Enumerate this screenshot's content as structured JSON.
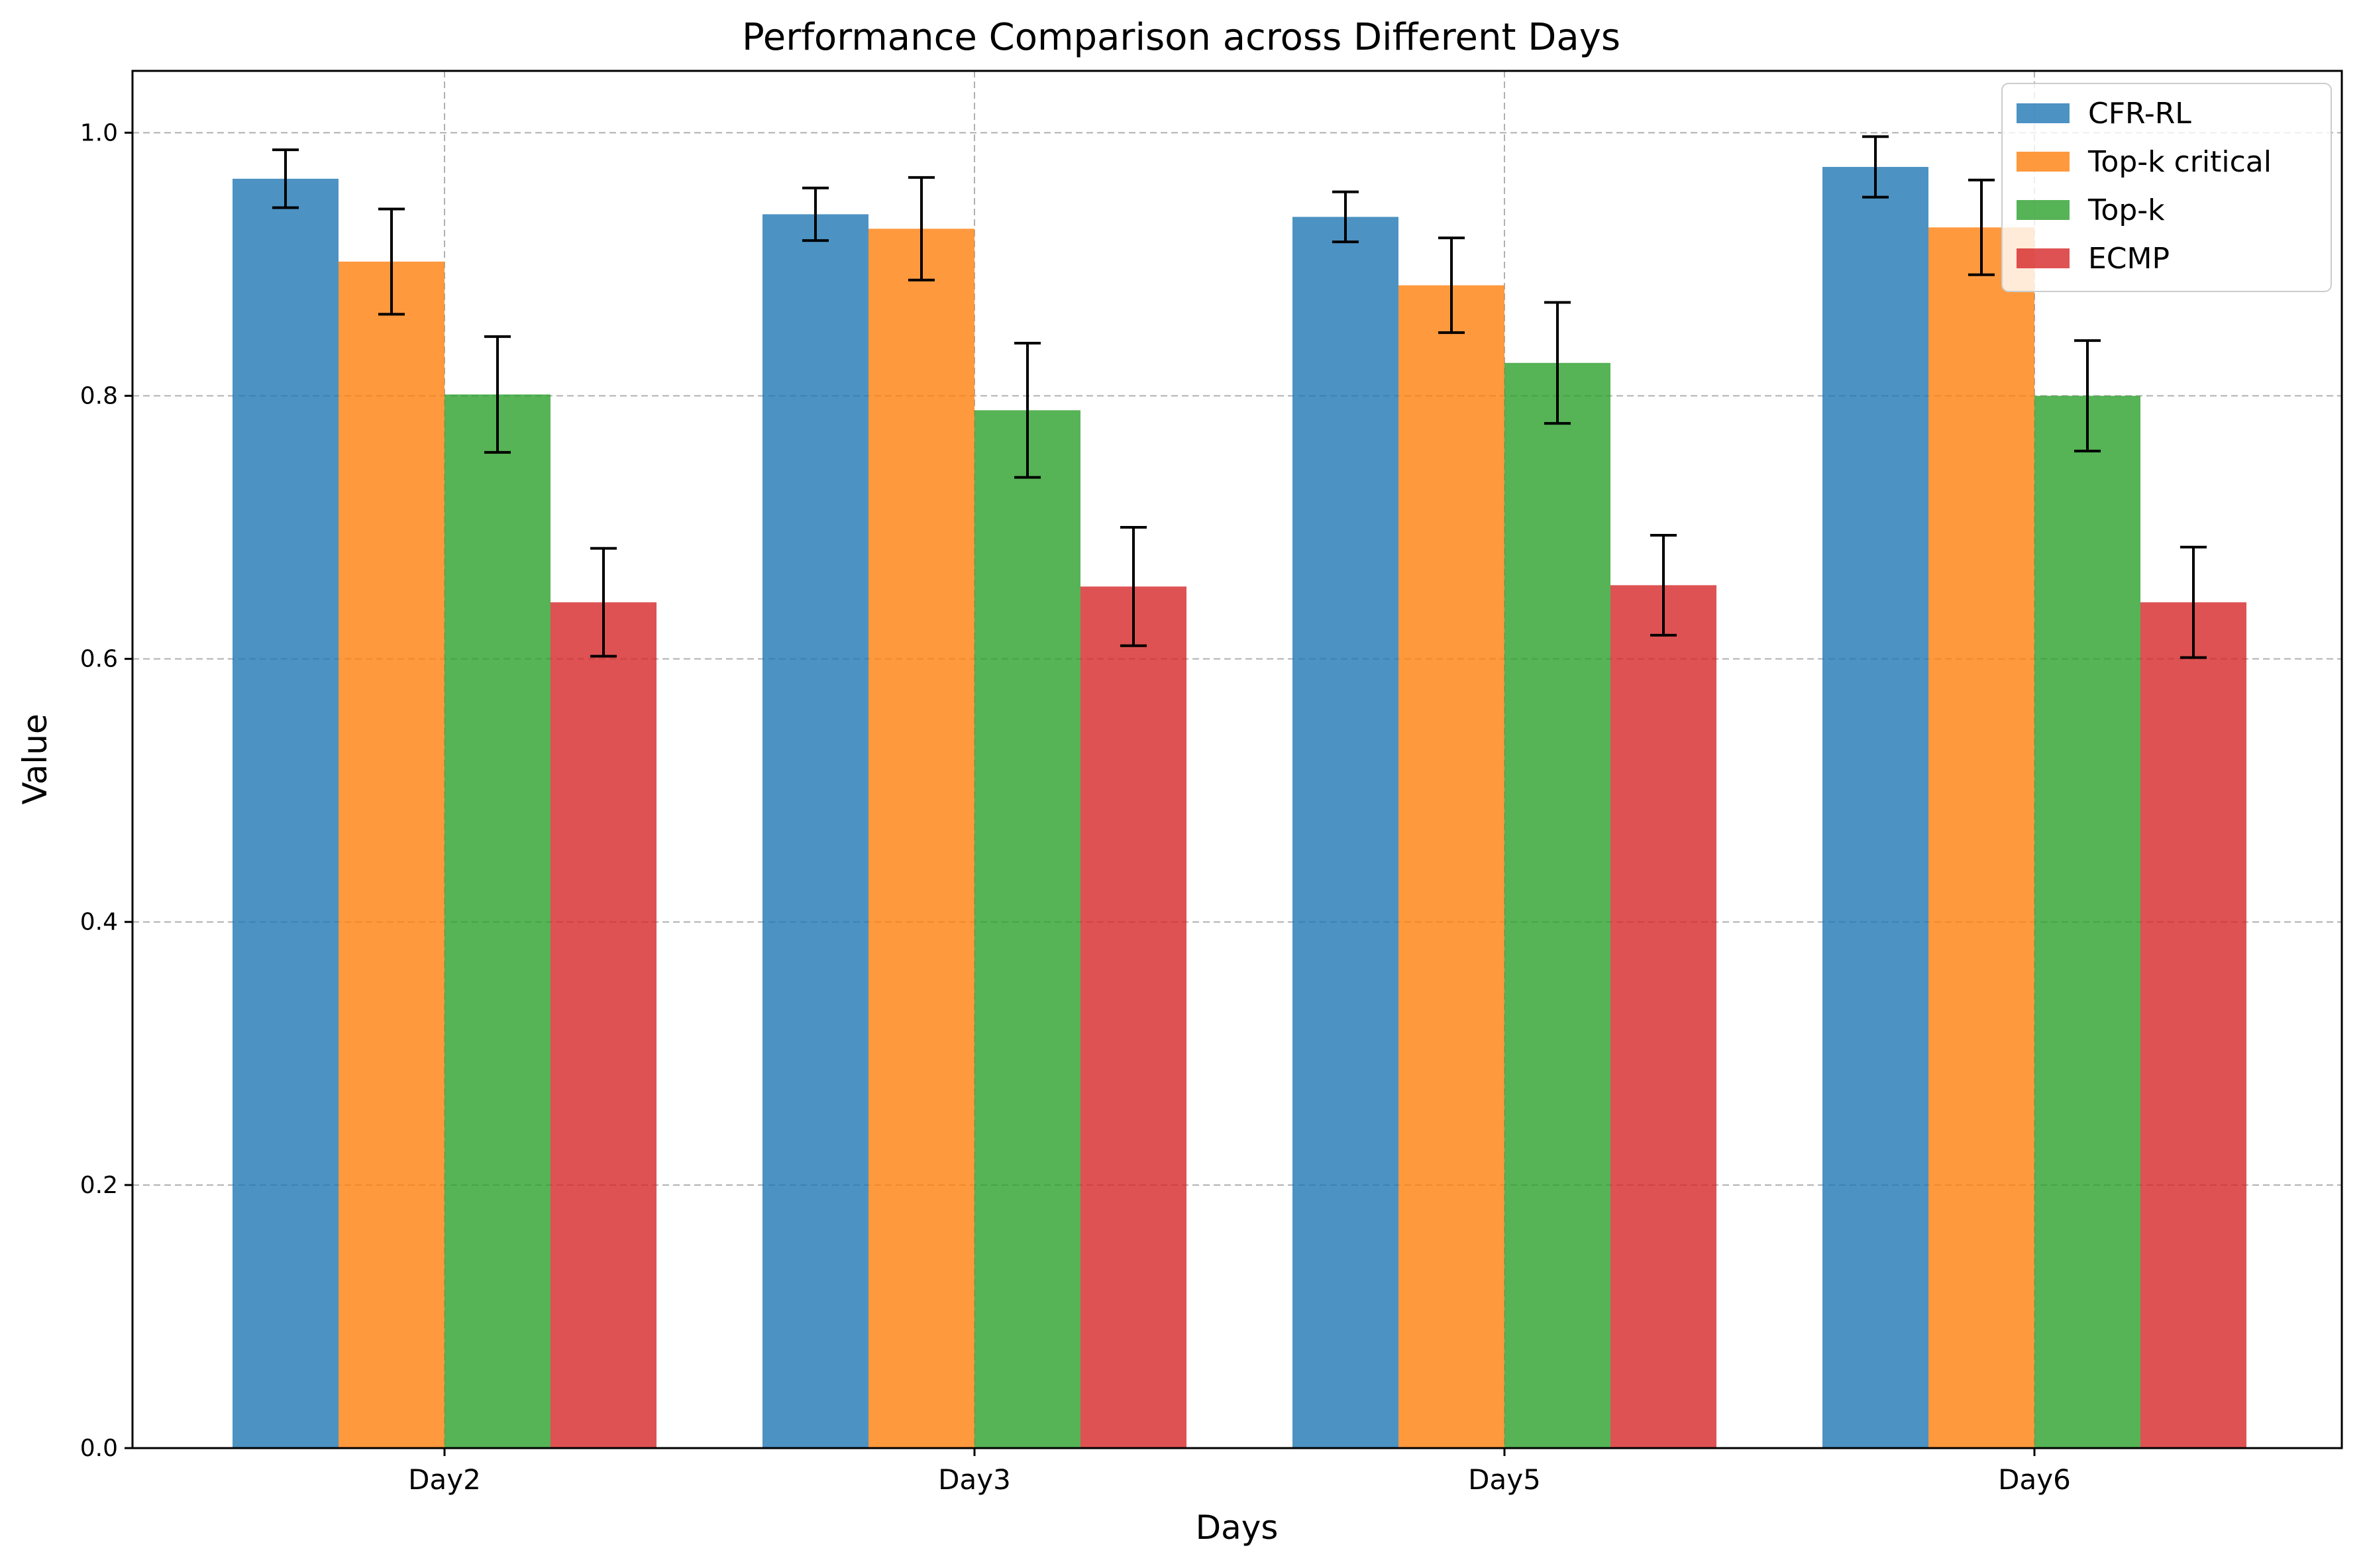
{
  "chart_data": {
    "type": "bar",
    "title": "Performance Comparison across Different Days",
    "xlabel": "Days",
    "ylabel": "Value",
    "categories": [
      "Day2",
      "Day3",
      "Day5",
      "Day6"
    ],
    "ylim": [
      0,
      1.047
    ],
    "yticks": [
      0.0,
      0.2,
      0.4,
      0.6,
      0.8,
      1.0
    ],
    "grid": true,
    "legend_position": "top-right",
    "series": [
      {
        "name": "CFR-RL",
        "color": "#1f77b4",
        "values": [
          0.965,
          0.938,
          0.936,
          0.974
        ],
        "errors": [
          0.022,
          0.02,
          0.019,
          0.023
        ]
      },
      {
        "name": "Top-k critical",
        "color": "#ff7f0e",
        "values": [
          0.902,
          0.927,
          0.884,
          0.928
        ],
        "errors": [
          0.04,
          0.039,
          0.036,
          0.036
        ]
      },
      {
        "name": "Top-k",
        "color": "#2ca02c",
        "values": [
          0.801,
          0.789,
          0.825,
          0.8
        ],
        "errors": [
          0.044,
          0.051,
          0.046,
          0.042
        ]
      },
      {
        "name": "ECMP",
        "color": "#d62728",
        "values": [
          0.643,
          0.655,
          0.656,
          0.643
        ],
        "errors": [
          0.041,
          0.045,
          0.038,
          0.042
        ]
      }
    ]
  }
}
